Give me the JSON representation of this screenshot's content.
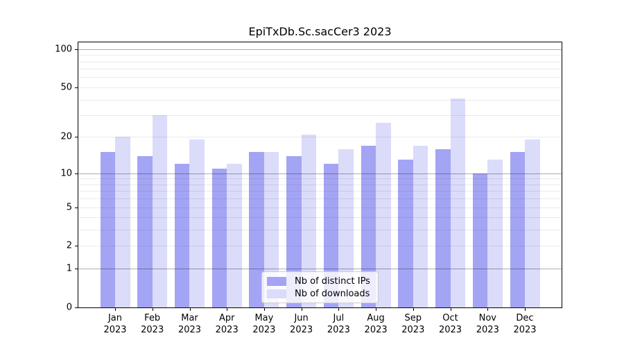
{
  "title": "EpiTxDb.Sc.sacCer3 2023",
  "legend": {
    "items": [
      {
        "label": "Nb of distinct IPs",
        "color": "#a4a4f4"
      },
      {
        "label": "Nb of downloads",
        "color": "#dbdbfa"
      }
    ],
    "position": "lower center"
  },
  "colors": {
    "bar_ips": "#a4a4f4",
    "bar_downloads": "#dbdbfa",
    "grid_major": "rgba(0,0,0,0.32)",
    "grid_minor": "rgba(0,0,0,0.08)",
    "spine": "#000000",
    "background": "#ffffff",
    "text": "#000000"
  },
  "chart_data": {
    "type": "bar",
    "title": "EpiTxDb.Sc.sacCer3 2023",
    "categories": [
      "Jan",
      "Feb",
      "Mar",
      "Apr",
      "May",
      "Jun",
      "Jul",
      "Aug",
      "Sep",
      "Oct",
      "Nov",
      "Dec"
    ],
    "year": "2023",
    "series": [
      {
        "name": "Nb of distinct IPs",
        "color": "#a4a4f4",
        "values": [
          15,
          14,
          12,
          11,
          15,
          14,
          12,
          17,
          13,
          16,
          10,
          15
        ]
      },
      {
        "name": "Nb of downloads",
        "color": "#dbdbfa",
        "values": [
          20,
          30,
          19,
          12,
          15,
          21,
          16,
          26,
          17,
          41,
          13,
          19
        ]
      }
    ],
    "xlabel": "",
    "ylabel": "",
    "yscale": "log1p",
    "ylim": [
      0,
      113
    ],
    "yticks": [
      100,
      50,
      20,
      10,
      5,
      2,
      1,
      0
    ],
    "ytick_labels": [
      "100",
      "50",
      "20",
      "10",
      "5",
      "2",
      "1",
      "0"
    ],
    "grid": "on",
    "grid_major_values": [
      1,
      10,
      100
    ],
    "grid_minor_values": [
      2,
      3,
      4,
      5,
      6,
      7,
      8,
      9,
      20,
      30,
      40,
      50,
      60,
      70,
      80,
      90
    ],
    "legend_position": "lower center"
  }
}
